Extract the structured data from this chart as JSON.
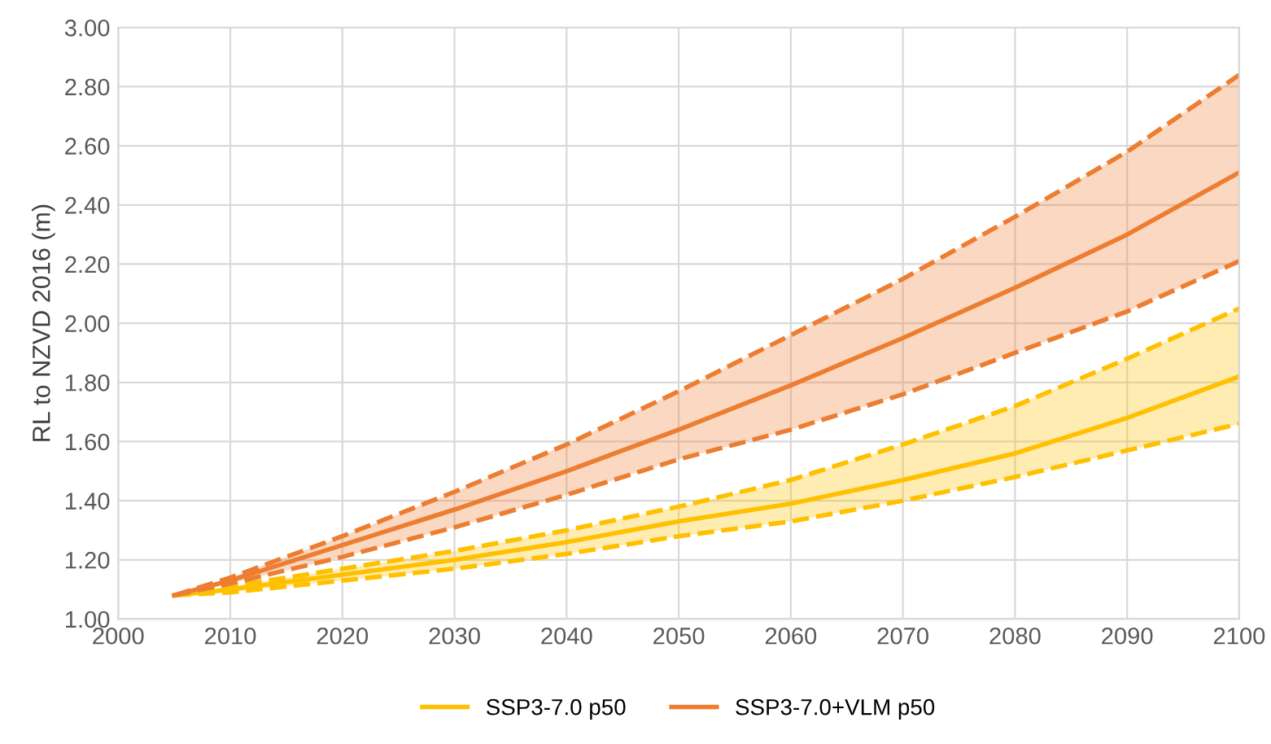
{
  "chart_data": {
    "type": "line",
    "ylabel": "RL to NZVD 2016 (m)",
    "xlim": [
      2000,
      2100
    ],
    "xticks": [
      2000,
      2010,
      2020,
      2030,
      2040,
      2050,
      2060,
      2070,
      2080,
      2090,
      2100
    ],
    "ylim": [
      1.0,
      3.0
    ],
    "yticks": [
      {
        "value": 1.0,
        "label": "1.00"
      },
      {
        "value": 1.2,
        "label": "1.20"
      },
      {
        "value": 1.4,
        "label": "1.40"
      },
      {
        "value": 1.6,
        "label": "1.60"
      },
      {
        "value": 1.8,
        "label": "1.80"
      },
      {
        "value": 2.0,
        "label": "2.00"
      },
      {
        "value": 2.2,
        "label": "2.20"
      },
      {
        "value": 2.4,
        "label": "2.40"
      },
      {
        "value": 2.6,
        "label": "2.60"
      },
      {
        "value": 2.8,
        "label": "2.80"
      },
      {
        "value": 3.0,
        "label": "3.00"
      }
    ],
    "grid": true,
    "legend": "bottom",
    "line_style": "solid",
    "marker": "none",
    "x": [
      2005,
      2010,
      2020,
      2030,
      2040,
      2050,
      2060,
      2070,
      2080,
      2090,
      2100
    ],
    "series": [
      {
        "name": "SSP3-7.0 p50",
        "color": "#ffc000",
        "values": [
          1.08,
          1.1,
          1.15,
          1.2,
          1.26,
          1.33,
          1.39,
          1.47,
          1.56,
          1.68,
          1.82
        ],
        "lower": [
          1.08,
          1.09,
          1.13,
          1.17,
          1.22,
          1.28,
          1.33,
          1.4,
          1.48,
          1.57,
          1.66
        ],
        "upper": [
          1.08,
          1.11,
          1.17,
          1.23,
          1.3,
          1.38,
          1.47,
          1.59,
          1.72,
          1.88,
          2.05
        ]
      },
      {
        "name": "SSP3-7.0+VLM p50",
        "color": "#ed7d31",
        "values": [
          1.08,
          1.13,
          1.25,
          1.37,
          1.5,
          1.64,
          1.79,
          1.95,
          2.12,
          2.3,
          2.51
        ],
        "lower": [
          1.08,
          1.12,
          1.21,
          1.31,
          1.42,
          1.54,
          1.64,
          1.76,
          1.9,
          2.04,
          2.21
        ],
        "upper": [
          1.08,
          1.14,
          1.28,
          1.43,
          1.59,
          1.77,
          1.96,
          2.15,
          2.36,
          2.58,
          2.84
        ]
      },
      {
        "color": "#ffc000",
        "line_style": "dashed",
        "values": [
          1.08,
          1.09,
          1.13,
          1.17,
          1.22,
          1.28,
          1.33,
          1.4,
          1.48,
          1.57,
          1.66
        ]
      },
      {
        "color": "#ffc000",
        "line_style": "dashed",
        "values": [
          1.08,
          1.11,
          1.17,
          1.23,
          1.3,
          1.38,
          1.47,
          1.59,
          1.72,
          1.88,
          2.05
        ]
      },
      {
        "color": "#ed7d31",
        "line_style": "dashed",
        "values": [
          1.08,
          1.12,
          1.21,
          1.31,
          1.42,
          1.54,
          1.64,
          1.76,
          1.9,
          2.04,
          2.21
        ]
      },
      {
        "color": "#ed7d31",
        "line_style": "dashed",
        "values": [
          1.08,
          1.14,
          1.28,
          1.43,
          1.59,
          1.77,
          1.96,
          2.15,
          2.36,
          2.58,
          2.84
        ]
      }
    ]
  }
}
